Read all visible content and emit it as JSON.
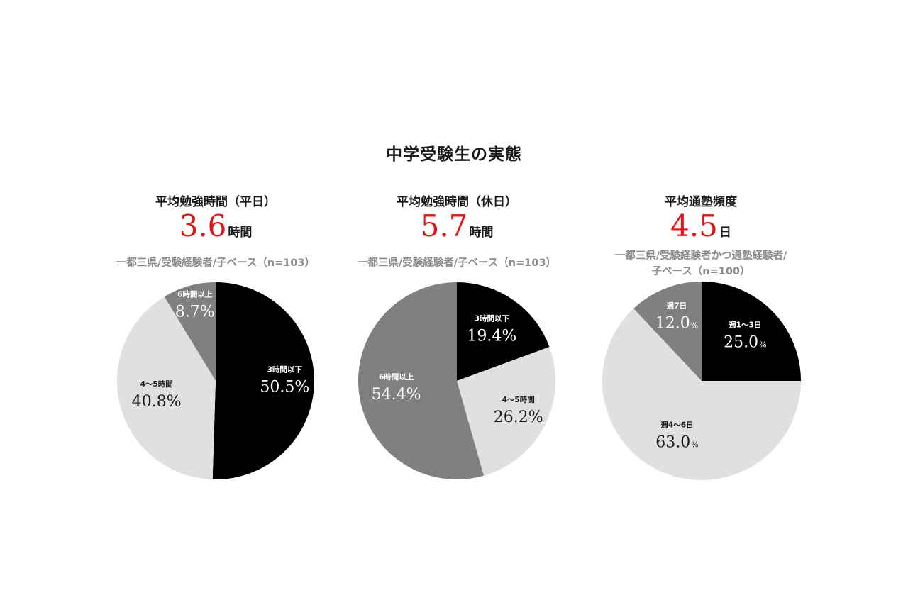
{
  "title": "中学受験生の実態",
  "chart_data": [
    {
      "type": "pie",
      "title": "平均勉強時間（平日）",
      "average": {
        "value": "3.6",
        "unit": "時間"
      },
      "note_lines": [
        "一都三県/受験経験者/子ベース（n=103）"
      ],
      "slices": [
        {
          "label": "3時間以下",
          "value": 50.5,
          "display": "50.5%",
          "color": "#000000",
          "text_color": "#ffffff"
        },
        {
          "label": "4〜5時間",
          "value": 40.8,
          "display": "40.8%",
          "color": "#e0e0e0",
          "text_color": "#1a1a1a"
        },
        {
          "label": "6時間以上",
          "value": 8.7,
          "display": "8.7%",
          "color": "#808080",
          "text_color": "#ffffff"
        }
      ]
    },
    {
      "type": "pie",
      "title": "平均勉強時間（休日）",
      "average": {
        "value": "5.7",
        "unit": "時間"
      },
      "note_lines": [
        "一都三県/受験経験者/子ベース（n=103）"
      ],
      "slices": [
        {
          "label": "3時間以下",
          "value": 19.4,
          "display": "19.4%",
          "color": "#000000",
          "text_color": "#ffffff"
        },
        {
          "label": "4〜5時間",
          "value": 26.2,
          "display": "26.2%",
          "color": "#e0e0e0",
          "text_color": "#1a1a1a"
        },
        {
          "label": "6時間以上",
          "value": 54.4,
          "display": "54.4%",
          "color": "#808080",
          "text_color": "#ffffff"
        }
      ]
    },
    {
      "type": "pie",
      "title": "平均通塾頻度",
      "average": {
        "value": "4.5",
        "unit": "日"
      },
      "note_lines": [
        "一都三県/受験経験者かつ通塾経験者/",
        "子ベース（n=100）"
      ],
      "slices": [
        {
          "label": "週1〜3日",
          "value": 25.0,
          "display": "25.0",
          "unit": "%",
          "color": "#000000",
          "text_color": "#ffffff"
        },
        {
          "label": "週4〜6日",
          "value": 63.0,
          "display": "63.0",
          "unit": "%",
          "color": "#e0e0e0",
          "text_color": "#1a1a1a"
        },
        {
          "label": "週7日",
          "value": 12.0,
          "display": "12.0",
          "unit": "%",
          "color": "#808080",
          "text_color": "#ffffff"
        }
      ]
    }
  ]
}
